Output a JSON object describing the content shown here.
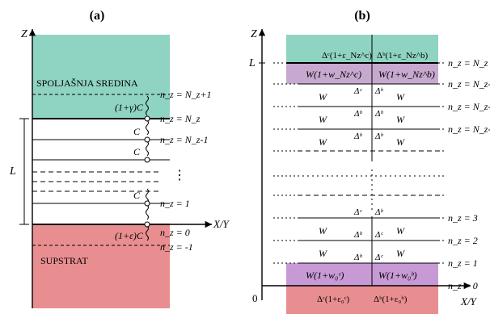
{
  "colors": {
    "environment": "#8fd3c3",
    "substrate": "#e98e90",
    "boundary_layer": "#c7a9cf",
    "boundary_layer_bottom": "#c79ad6"
  },
  "panel_a": {
    "title": "(a)",
    "axis_z": "Z",
    "axis_x": "X/Y",
    "thickness": "L",
    "environment_label": "SPOLJAŠNJA SREDINA",
    "substrate_label": "SUPSTRAT",
    "coupling_top": "(1+γ)C",
    "coupling_inner": "C",
    "coupling_bottom": "(1+ε)C",
    "dots": "⋮",
    "levels": [
      "n_z = N_z+1",
      "n_z = N_z",
      "n_z = N_z-1",
      "n_z = 1",
      "n_z = 0",
      "n_z = -1"
    ]
  },
  "panel_b": {
    "title": "(b)",
    "axis_z": "Z",
    "axis_x": "X/Y",
    "thickness": "L",
    "origin": "0",
    "top_delta_left": "Δᶜ(1+ε_Nz^c)",
    "top_delta_right": "Δᵇ(1+ε_Nz^b)",
    "top_w_left": "W(1+w_Nz^c)",
    "top_w_right": "W(1+w_Nz^b)",
    "bottom_w_left": "W(1+w₀ᶜ)",
    "bottom_w_right": "W(1+w₀ᵇ)",
    "bottom_delta_left": "Δᶜ(1+ε₀ᶜ)",
    "bottom_delta_right": "Δᵇ(1+ε₀ᵇ)",
    "W": "W",
    "delta_c": "Δᶜ",
    "delta_b": "Δᵇ",
    "ellipsis": "…",
    "levels": [
      "n_z = N_z",
      "n_z = N_z-1",
      "n_z = N_z-2",
      "n_z = N_z-3",
      "n_z = 3",
      "n_z = 2",
      "n_z = 1",
      "n_z = 0"
    ]
  }
}
